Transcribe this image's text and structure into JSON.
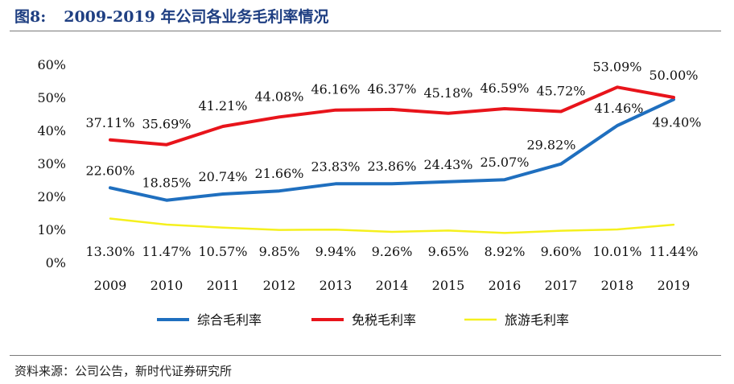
{
  "figure": {
    "number": "图8:",
    "title": "2009-2019 年公司各业务毛利率情况"
  },
  "source": "资料来源：公司公告，新时代证券研究所",
  "chart_data": {
    "type": "line",
    "title": "",
    "xlabel": "",
    "ylabel": "",
    "categories": [
      "2009",
      "2010",
      "2011",
      "2012",
      "2013",
      "2014",
      "2015",
      "2016",
      "2017",
      "2018",
      "2019"
    ],
    "ylim": [
      0,
      60
    ],
    "yticks": [
      "0%",
      "10%",
      "20%",
      "30%",
      "40%",
      "50%",
      "60%"
    ],
    "grid": false,
    "legend": "bottom",
    "series": [
      {
        "name": "综合毛利率",
        "color": "#1f6fbf",
        "values": [
          22.6,
          18.85,
          20.74,
          21.66,
          23.83,
          23.86,
          24.43,
          25.07,
          29.82,
          41.46,
          49.4
        ],
        "labels": [
          "22.60%",
          "18.85%",
          "20.74%",
          "21.66%",
          "23.83%",
          "23.86%",
          "24.43%",
          "25.07%",
          "29.82%",
          "41.46%",
          "49.40%"
        ]
      },
      {
        "name": "免税毛利率",
        "color": "#e8141b",
        "values": [
          37.11,
          35.69,
          41.21,
          44.08,
          46.16,
          46.37,
          45.18,
          46.59,
          45.72,
          53.09,
          50.0
        ],
        "labels": [
          "37.11%",
          "35.69%",
          "41.21%",
          "44.08%",
          "46.16%",
          "46.37%",
          "45.18%",
          "46.59%",
          "45.72%",
          "53.09%",
          "50.00%"
        ]
      },
      {
        "name": "旅游毛利率",
        "color": "#f5f01e",
        "values": [
          13.3,
          11.47,
          10.57,
          9.85,
          9.94,
          9.26,
          9.65,
          8.92,
          9.6,
          10.01,
          11.44
        ],
        "labels": [
          "13.30%",
          "11.47%",
          "10.57%",
          "9.85%",
          "9.94%",
          "9.26%",
          "9.65%",
          "8.92%",
          "9.60%",
          "10.01%",
          "11.44%"
        ]
      }
    ]
  }
}
